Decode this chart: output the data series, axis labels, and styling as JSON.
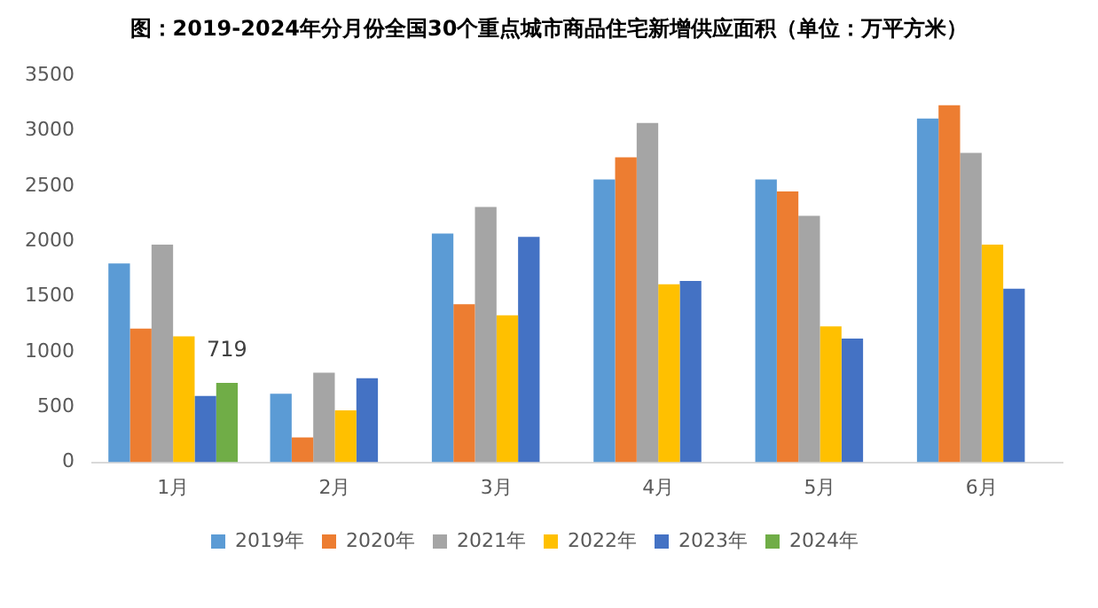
{
  "chart_data": {
    "type": "bar",
    "title": "图：2019-2024年分月份全国30个重点城市商品住宅新增供应面积（单位：万平方米）",
    "categories": [
      "1月",
      "2月",
      "3月",
      "4月",
      "5月",
      "6月"
    ],
    "series": [
      {
        "name": "2019年",
        "color": "#5b9bd5",
        "values": [
          1800,
          620,
          2070,
          2560,
          2560,
          3110
        ]
      },
      {
        "name": "2020年",
        "color": "#ed7d31",
        "values": [
          1210,
          225,
          1430,
          2760,
          2450,
          3230
        ]
      },
      {
        "name": "2021年",
        "color": "#a5a5a5",
        "values": [
          1970,
          810,
          2310,
          3070,
          2230,
          2800
        ]
      },
      {
        "name": "2022年",
        "color": "#ffc000",
        "values": [
          1140,
          470,
          1330,
          1610,
          1230,
          1970
        ]
      },
      {
        "name": "2023年",
        "color": "#4472c4",
        "values": [
          600,
          760,
          2040,
          1640,
          1120,
          1570
        ]
      },
      {
        "name": "2024年",
        "color": "#70ad47",
        "values": [
          719,
          null,
          null,
          null,
          null,
          null
        ],
        "value_labels": [
          "719",
          null,
          null,
          null,
          null,
          null
        ]
      }
    ],
    "ylim": [
      0,
      3500
    ],
    "yticks": [
      0,
      500,
      1000,
      1500,
      2000,
      2500,
      3000,
      3500
    ],
    "grid": false,
    "legend": "bottom"
  }
}
